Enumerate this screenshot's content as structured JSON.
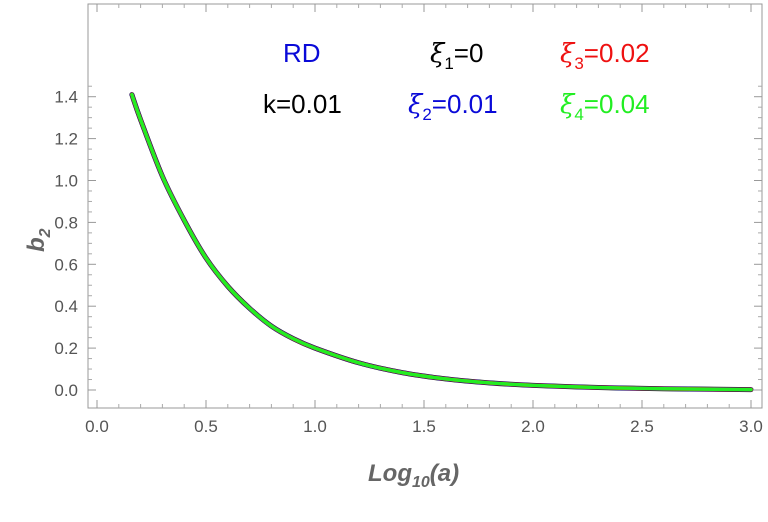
{
  "chart_data": {
    "type": "line",
    "xlabel": {
      "base": "Log",
      "sub": "10",
      "arg": "(a)"
    },
    "ylabel": {
      "base": "b",
      "sub": "2"
    },
    "xlim": [
      0.0,
      3.0
    ],
    "ylim": [
      -0.08,
      1.45
    ],
    "xticks": [
      "0.0",
      "0.5",
      "1.0",
      "1.5",
      "2.0",
      "2.5",
      "3.0"
    ],
    "yticks": [
      "0.0",
      "0.2",
      "0.4",
      "0.6",
      "0.8",
      "1.0",
      "1.2",
      "1.4"
    ],
    "grid": false,
    "annotations": {
      "model": "RD",
      "k": "k=0.01",
      "xi1": {
        "sym": "ξ",
        "sub": "1",
        "val": "=0",
        "color": "#000000"
      },
      "xi2": {
        "sym": "ξ",
        "sub": "2",
        "val": "=0.01",
        "color": "#0a0ad8"
      },
      "xi3": {
        "sym": "ξ",
        "sub": "3",
        "val": "=0.02",
        "color": "#ee1111"
      },
      "xi4": {
        "sym": "ξ",
        "sub": "4",
        "val": "=0.04",
        "color": "#22ee22"
      }
    },
    "series": [
      {
        "color": "#000000",
        "x": [
          0.16,
          0.2,
          0.3,
          0.4,
          0.5,
          0.6,
          0.7,
          0.8,
          0.9,
          1.0,
          1.2,
          1.4,
          1.6,
          1.8,
          2.0,
          2.3,
          2.6,
          3.0
        ],
        "y": [
          1.41,
          1.29,
          1.02,
          0.81,
          0.63,
          0.495,
          0.39,
          0.305,
          0.245,
          0.2,
          0.13,
          0.083,
          0.053,
          0.034,
          0.022,
          0.012,
          0.006,
          0.002
        ]
      },
      {
        "color": "#0a0ad8",
        "x": [
          0.16,
          0.2,
          0.3,
          0.4,
          0.5,
          0.6,
          0.7,
          0.8,
          0.9,
          1.0,
          1.2,
          1.4,
          1.6,
          1.8,
          2.0,
          2.3,
          2.6,
          3.0
        ],
        "y": [
          1.41,
          1.29,
          1.02,
          0.81,
          0.63,
          0.495,
          0.39,
          0.305,
          0.245,
          0.2,
          0.13,
          0.083,
          0.053,
          0.034,
          0.022,
          0.012,
          0.006,
          0.002
        ]
      },
      {
        "color": "#ee1111",
        "x": [
          0.16,
          0.2,
          0.3,
          0.4,
          0.5,
          0.6,
          0.7,
          0.8,
          0.9,
          1.0,
          1.2,
          1.4,
          1.6,
          1.8,
          2.0,
          2.3,
          2.6,
          3.0
        ],
        "y": [
          1.41,
          1.29,
          1.02,
          0.81,
          0.63,
          0.495,
          0.39,
          0.305,
          0.245,
          0.2,
          0.13,
          0.083,
          0.053,
          0.034,
          0.022,
          0.012,
          0.006,
          0.002
        ]
      },
      {
        "color": "#22ee22",
        "x": [
          0.16,
          0.2,
          0.3,
          0.4,
          0.5,
          0.6,
          0.7,
          0.8,
          0.9,
          1.0,
          1.2,
          1.4,
          1.6,
          1.8,
          2.0,
          2.3,
          2.6,
          3.0
        ],
        "y": [
          1.41,
          1.29,
          1.02,
          0.81,
          0.63,
          0.495,
          0.39,
          0.305,
          0.245,
          0.2,
          0.13,
          0.083,
          0.053,
          0.034,
          0.022,
          0.012,
          0.006,
          0.002
        ]
      }
    ]
  }
}
